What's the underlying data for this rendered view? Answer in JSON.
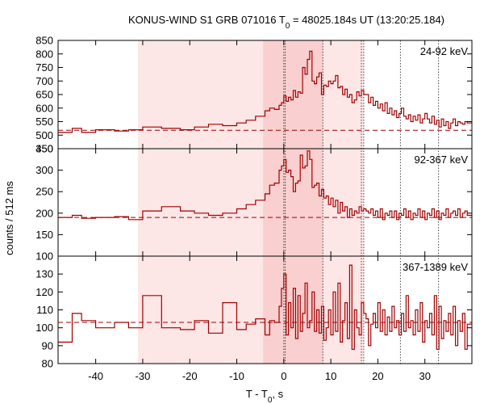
{
  "chart_data": {
    "type": "line",
    "title_prefix": "KONUS-WIND S1 GRB 071016 T",
    "title_sub": "0",
    "title_suffix": " = 48025.184s UT (13:20:25.184)",
    "xlabel_prefix": "T - T",
    "xlabel_sub": "0",
    "xlabel_suffix": ", s",
    "ylabel": "counts / 512 ms",
    "xlim": [
      -48,
      40
    ],
    "xticks": [
      -40,
      -30,
      -20,
      -10,
      0,
      10,
      20,
      30
    ],
    "shaded_regions": [
      {
        "from": -31,
        "to": 17,
        "color": "#fde6e6"
      },
      {
        "from": -4.4,
        "to": 8.3,
        "color": "#f9cfcf"
      }
    ],
    "vertical_lines": [
      0,
      0.3,
      8.3,
      16.5,
      17,
      24.8,
      32.9
    ],
    "panels": [
      {
        "name": "24-92 keV",
        "ylim": [
          450,
          850
        ],
        "yticks": [
          450,
          500,
          550,
          600,
          650,
          700,
          750,
          800,
          850
        ],
        "background": 518,
        "x": [
          -48,
          -45,
          -43,
          -40,
          -36,
          -33,
          -30,
          -26,
          -22,
          -19,
          -16,
          -13,
          -10,
          -8,
          -6,
          -4,
          -3,
          -2,
          -1,
          -0.5,
          0,
          0.5,
          1,
          1.5,
          2,
          2.5,
          3,
          3.5,
          4,
          4.5,
          5,
          5.5,
          6,
          6.5,
          7,
          7.5,
          8,
          8.5,
          9,
          9.5,
          10,
          10.5,
          11,
          11.5,
          12,
          12.5,
          13,
          13.5,
          14,
          14.5,
          15,
          15.5,
          16,
          16.5,
          17,
          17.5,
          18,
          18.5,
          19,
          19.5,
          20,
          20.5,
          21,
          21.5,
          22,
          22.5,
          23,
          23.5,
          24,
          24.5,
          25,
          25.5,
          26,
          26.5,
          27,
          27.5,
          28,
          28.5,
          29,
          29.5,
          30,
          30.5,
          31,
          31.5,
          32,
          32.5,
          33,
          33.5,
          34,
          34.5,
          35,
          35.5,
          36,
          36.5,
          37,
          37.5,
          38,
          38.5,
          39
        ],
        "y": [
          510,
          525,
          510,
          520,
          515,
          520,
          530,
          525,
          520,
          530,
          540,
          535,
          545,
          555,
          570,
          590,
          600,
          595,
          610,
          620,
          645,
          625,
          640,
          630,
          665,
          640,
          660,
          655,
          750,
          725,
          780,
          810,
          700,
          690,
          715,
          730,
          650,
          685,
          680,
          700,
          690,
          700,
          720,
          675,
          680,
          650,
          670,
          640,
          650,
          620,
          630,
          660,
          645,
          665,
          650,
          650,
          620,
          640,
          610,
          625,
          600,
          615,
          590,
          620,
          580,
          600,
          575,
          590,
          565,
          580,
          600,
          570,
          560,
          575,
          550,
          570,
          555,
          575,
          545,
          560,
          580,
          560,
          545,
          570,
          540,
          555,
          530,
          560,
          535,
          550,
          525,
          545,
          560,
          535,
          550,
          545,
          540,
          550,
          545
        ]
      },
      {
        "name": "92-367 keV",
        "ylim": [
          100,
          350
        ],
        "yticks": [
          100,
          150,
          200,
          250,
          300,
          350
        ],
        "background": 190,
        "x": [
          -48,
          -45,
          -43,
          -40,
          -36,
          -33,
          -30,
          -26,
          -22,
          -19,
          -16,
          -13,
          -10,
          -8,
          -6,
          -4,
          -3,
          -2,
          -1,
          -0.5,
          0,
          0.5,
          1,
          1.5,
          2,
          2.5,
          3,
          3.5,
          4,
          4.5,
          5,
          5.5,
          6,
          6.5,
          7,
          7.5,
          8,
          8.5,
          9,
          9.5,
          10,
          10.5,
          11,
          11.5,
          12,
          12.5,
          13,
          13.5,
          14,
          14.5,
          15,
          15.5,
          16,
          16.5,
          17,
          17.5,
          18,
          18.5,
          19,
          19.5,
          20,
          20.5,
          21,
          21.5,
          22,
          22.5,
          23,
          23.5,
          24,
          24.5,
          25,
          25.5,
          26,
          26.5,
          27,
          27.5,
          28,
          28.5,
          29,
          29.5,
          30,
          30.5,
          31,
          31.5,
          32,
          32.5,
          33,
          33.5,
          34,
          34.5,
          35,
          35.5,
          36,
          36.5,
          37,
          37.5,
          38,
          38.5,
          39
        ],
        "y": [
          190,
          195,
          188,
          190,
          192,
          185,
          205,
          215,
          205,
          200,
          195,
          200,
          210,
          220,
          230,
          245,
          265,
          270,
          300,
          310,
          325,
          295,
          300,
          285,
          250,
          270,
          275,
          335,
          305,
          310,
          345,
          325,
          260,
          265,
          270,
          240,
          255,
          235,
          240,
          220,
          235,
          215,
          230,
          200,
          225,
          205,
          215,
          190,
          210,
          195,
          205,
          200,
          215,
          205,
          210,
          205,
          200,
          210,
          195,
          205,
          190,
          210,
          185,
          200,
          195,
          205,
          190,
          205,
          185,
          200,
          195,
          210,
          190,
          205,
          185,
          200,
          195,
          210,
          190,
          205,
          185,
          200,
          195,
          210,
          190,
          205,
          185,
          200,
          195,
          210,
          190,
          200,
          205,
          195,
          210,
          190,
          200,
          205,
          195
        ]
      },
      {
        "name": "367-1389 keV",
        "ylim": [
          80,
          140
        ],
        "yticks": [
          80,
          90,
          100,
          110,
          120,
          130
        ],
        "background": 103,
        "x": [
          -48,
          -45,
          -43,
          -40,
          -36,
          -33,
          -30,
          -26,
          -22,
          -19,
          -16,
          -13,
          -10,
          -8,
          -6,
          -4,
          -3,
          -2,
          -1,
          -0.5,
          0,
          0.5,
          1,
          1.5,
          2,
          2.5,
          3,
          3.5,
          4,
          4.5,
          5,
          5.5,
          6,
          6.5,
          7,
          7.5,
          8,
          8.5,
          9,
          9.5,
          10,
          10.5,
          11,
          11.5,
          12,
          12.5,
          13,
          13.5,
          14,
          14.5,
          15,
          15.5,
          16,
          16.5,
          17,
          17.5,
          18,
          18.5,
          19,
          19.5,
          20,
          20.5,
          21,
          21.5,
          22,
          22.5,
          23,
          23.5,
          24,
          24.5,
          25,
          25.5,
          26,
          26.5,
          27,
          27.5,
          28,
          28.5,
          29,
          29.5,
          30,
          30.5,
          31,
          31.5,
          32,
          32.5,
          33,
          33.5,
          34,
          34.5,
          35,
          35.5,
          36,
          36.5,
          37,
          37.5,
          38,
          38.5,
          39
        ],
        "y": [
          92,
          108,
          104,
          100,
          103,
          100,
          118,
          100,
          99,
          104,
          97,
          114,
          99,
          102,
          105,
          96,
          104,
          103,
          112,
          122,
          130,
          96,
          114,
          100,
          122,
          94,
          118,
          98,
          108,
          125,
          100,
          104,
          120,
          98,
          110,
          97,
          112,
          93,
          100,
          110,
          96,
          120,
          98,
          125,
          92,
          104,
          114,
          94,
          135,
          88,
          110,
          100,
          96,
          114,
          108,
          105,
          90,
          102,
          108,
          100,
          114,
          98,
          110,
          96,
          106,
          98,
          112,
          100,
          104,
          96,
          108,
          98,
          118,
          100,
          104,
          96,
          110,
          98,
          114,
          92,
          104,
          100,
          108,
          96,
          118,
          88,
          112,
          94,
          104,
          98,
          108,
          96,
          112,
          90,
          104,
          98,
          108,
          88,
          102
        ]
      }
    ]
  }
}
